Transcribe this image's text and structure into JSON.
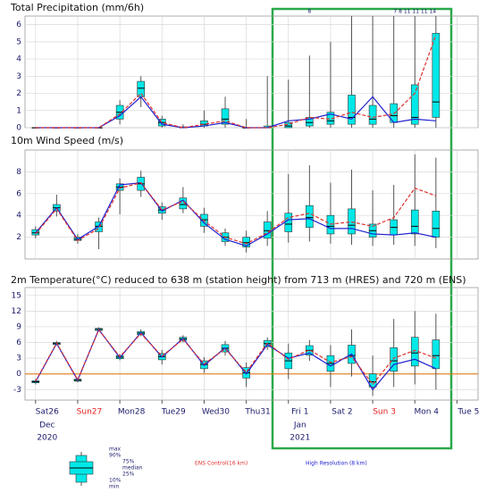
{
  "time_axis": {
    "x": [
      0,
      12,
      24,
      36,
      48,
      60,
      72,
      84,
      96,
      108,
      120,
      132,
      144,
      156,
      168,
      180,
      192,
      204,
      216,
      228
    ],
    "xlim": [
      -6,
      252
    ],
    "xticks": [
      {
        "value": 0,
        "label": "Sat26"
      },
      {
        "value": 24,
        "label": "Sun27"
      },
      {
        "value": 48,
        "label": "Mon28"
      },
      {
        "value": 72,
        "label": "Tue29"
      },
      {
        "value": 96,
        "label": "Wed30"
      },
      {
        "value": 120,
        "label": "Thu31"
      },
      {
        "value": 144,
        "label": "Fri 1"
      },
      {
        "value": 168,
        "label": "Sat 2"
      },
      {
        "value": 192,
        "label": "Sun 3"
      },
      {
        "value": 216,
        "label": "Mon 4"
      },
      {
        "value": 240,
        "label": "Tue 5"
      }
    ],
    "weekend_ticks": [
      1,
      8
    ],
    "weekend_color": "#e02020",
    "months": [
      {
        "value": 0,
        "label": "Dec",
        "year": "2020"
      },
      {
        "value": 144,
        "label": "Jan",
        "year": "2021"
      }
    ]
  },
  "chart_data": [
    {
      "type": "boxplot",
      "title": "Total Precipitation (mm/6h)",
      "ylim": [
        0,
        6.5
      ],
      "yticks": [
        0,
        1,
        2,
        3,
        4,
        5,
        6
      ],
      "min": [
        0,
        0,
        0,
        0,
        0.2,
        1.2,
        0,
        0,
        0,
        0,
        0,
        0,
        0,
        0,
        0,
        0,
        0,
        0,
        0,
        0
      ],
      "q1": [
        0,
        0,
        0,
        0,
        0.5,
        1.8,
        0.1,
        0,
        0.1,
        0.2,
        0,
        0,
        0,
        0.1,
        0.2,
        0.2,
        0.2,
        0.3,
        0.2,
        0.6
      ],
      "median": [
        0,
        0,
        0,
        0,
        0.9,
        2.3,
        0.3,
        0,
        0.2,
        0.5,
        0,
        0,
        0.1,
        0.3,
        0.4,
        0.6,
        0.5,
        0.7,
        0.6,
        1.5
      ],
      "q3": [
        0,
        0,
        0,
        0,
        1.3,
        2.7,
        0.5,
        0.05,
        0.4,
        1.1,
        0,
        0.1,
        0.3,
        0.6,
        0.9,
        1.9,
        1.3,
        1.4,
        2.5,
        5.5
      ],
      "max": [
        0,
        0,
        0,
        0,
        1.6,
        3.0,
        0.7,
        0.2,
        1.0,
        1.8,
        0.5,
        3.0,
        2.8,
        4.2,
        5.0,
        6.5,
        6.5,
        6.5,
        6.5,
        6.5
      ],
      "series": [
        {
          "name": "High Resolution (8 km)",
          "color": "#2020d0",
          "values": [
            0,
            0,
            0,
            0,
            0.7,
            1.8,
            0.2,
            0,
            0.1,
            0.3,
            0,
            0,
            0.4,
            0.5,
            0.8,
            0.5,
            1.8,
            0.3,
            0.5,
            0.4
          ]
        },
        {
          "name": "ENS Control(16 km)",
          "color": "#e03030",
          "values": [
            0,
            0,
            0,
            0,
            0.8,
            2.0,
            0.3,
            0,
            0.2,
            0.4,
            0,
            0,
            0.2,
            0.6,
            0.5,
            0.9,
            0.6,
            0.8,
            2.0,
            5.4
          ]
        }
      ],
      "overflow_labels": [
        {
          "x": 156,
          "label": "8"
        },
        {
          "x": 216,
          "label": "7  8  11 11 11 14"
        }
      ],
      "box_color": "#00e8e8",
      "grid": true
    },
    {
      "type": "boxplot",
      "title": "10m Wind Speed (m/s)",
      "ylim": [
        0,
        10
      ],
      "yticks": [
        2,
        4,
        6,
        8
      ],
      "min": [
        1.9,
        3.9,
        1.4,
        0.9,
        4.1,
        5.7,
        3.6,
        4.2,
        2.4,
        1.2,
        0.6,
        1.2,
        1.5,
        1.6,
        1.4,
        1.3,
        1.2,
        1.3,
        1.2,
        1.0
      ],
      "q1": [
        2.2,
        4.4,
        1.7,
        2.5,
        6.3,
        6.3,
        4.2,
        4.6,
        3.0,
        1.6,
        1.1,
        1.9,
        2.5,
        2.9,
        2.3,
        2.3,
        2.0,
        2.2,
        2.3,
        2.0
      ],
      "median": [
        2.4,
        4.7,
        1.8,
        3.0,
        6.6,
        6.9,
        4.5,
        5.0,
        3.6,
        2.0,
        1.5,
        2.6,
        3.2,
        3.8,
        3.0,
        3.1,
        2.6,
        2.9,
        3.0,
        2.8
      ],
      "q3": [
        2.7,
        5.0,
        2.0,
        3.4,
        6.9,
        7.5,
        4.8,
        5.6,
        4.1,
        2.4,
        2.0,
        3.4,
        4.2,
        4.9,
        4.0,
        4.6,
        3.2,
        3.6,
        4.5,
        4.4
      ],
      "max": [
        3.0,
        5.9,
        2.3,
        3.8,
        7.4,
        8.1,
        5.2,
        6.6,
        4.7,
        2.8,
        2.6,
        4.4,
        7.8,
        8.6,
        7.0,
        8.2,
        6.3,
        6.8,
        9.6,
        9.3
      ],
      "series": [
        {
          "name": "High Resolution (8 km)",
          "color": "#2020d0",
          "values": [
            2.4,
            4.7,
            1.8,
            3.0,
            6.8,
            7.0,
            4.4,
            5.4,
            3.3,
            1.8,
            1.2,
            2.3,
            3.6,
            3.7,
            2.8,
            2.8,
            2.3,
            2.2,
            2.4,
            2.0
          ]
        },
        {
          "name": "ENS Control(16 km)",
          "color": "#e03030",
          "values": [
            2.3,
            4.6,
            1.7,
            2.8,
            6.5,
            7.0,
            4.5,
            5.3,
            3.5,
            2.0,
            1.4,
            2.4,
            3.8,
            4.2,
            3.2,
            3.4,
            3.0,
            3.8,
            6.5,
            5.8
          ]
        }
      ],
      "box_color": "#00e8e8",
      "grid": true
    },
    {
      "type": "boxplot",
      "title": "2m Temperature(°C) reduced to 638 m (station height)  from 713 m (HRES) and 720 m (ENS)",
      "ylim": [
        -5,
        16.5
      ],
      "yticks": [
        -3,
        0,
        3,
        6,
        9,
        12,
        15
      ],
      "min": [
        -2,
        5.5,
        -1.6,
        8.1,
        2.6,
        7.2,
        1.8,
        6.0,
        0.2,
        3.5,
        -2.5,
        4.6,
        -1.0,
        2.5,
        -2.5,
        -0.5,
        -4.2,
        -2.5,
        -2.0,
        -3.0
      ],
      "q1": [
        -1.7,
        5.6,
        -1.4,
        8.3,
        2.9,
        7.5,
        2.7,
        6.4,
        1.0,
        4.2,
        -0.8,
        5.2,
        1.0,
        3.6,
        0.5,
        2.0,
        -2.5,
        0.5,
        1.5,
        1.0
      ],
      "median": [
        -1.5,
        5.8,
        -1.2,
        8.5,
        3.2,
        7.8,
        3.3,
        6.7,
        1.8,
        4.9,
        0.2,
        5.8,
        2.5,
        4.5,
        2.0,
        3.5,
        -1.5,
        2.5,
        4.0,
        3.5
      ],
      "q3": [
        -1.3,
        6.0,
        -1.0,
        8.7,
        3.5,
        8.1,
        3.9,
        7.0,
        2.5,
        5.6,
        1.2,
        6.4,
        4.0,
        5.4,
        3.5,
        5.5,
        0.0,
        5.0,
        7.0,
        6.5
      ],
      "max": [
        -1.0,
        6.3,
        -0.8,
        8.9,
        3.8,
        8.5,
        4.6,
        7.4,
        3.2,
        6.3,
        2.2,
        7.0,
        5.8,
        6.5,
        5.5,
        8.5,
        3.5,
        10.5,
        12.0,
        11.5
      ],
      "series": [
        {
          "name": "High Resolution (8 km)",
          "color": "#2020d0",
          "values": [
            -1.5,
            5.8,
            -1.2,
            8.5,
            3.1,
            7.9,
            3.2,
            6.8,
            1.6,
            5.0,
            0.0,
            5.6,
            3.0,
            4.0,
            1.5,
            3.8,
            -3.0,
            1.8,
            2.8,
            1.0
          ]
        },
        {
          "name": "ENS Control(16 km)",
          "color": "#e03030",
          "values": [
            -1.4,
            5.9,
            -1.1,
            8.4,
            3.3,
            7.7,
            3.4,
            6.6,
            1.9,
            4.8,
            0.3,
            5.9,
            2.8,
            4.6,
            2.2,
            3.3,
            -2.0,
            3.0,
            4.5,
            3.0
          ]
        }
      ],
      "reference_line": 0,
      "reference_color": "#e07000",
      "box_color": "#00e8e8",
      "grid": true
    }
  ],
  "legend": {
    "box_labels": [
      "max",
      "90%",
      "75%",
      "median",
      "25%",
      "10%",
      "min"
    ]
  }
}
